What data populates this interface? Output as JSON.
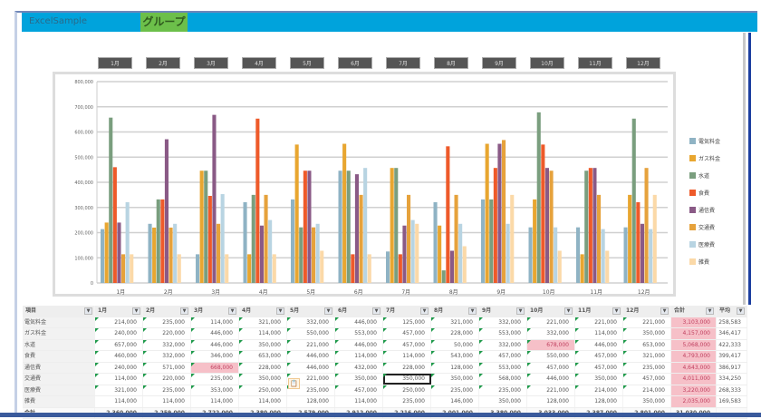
{
  "window": {
    "title": "ExcelSample",
    "active_tab": "グループ"
  },
  "month_buttons": [
    "1月",
    "2月",
    "3月",
    "4月",
    "5月",
    "6月",
    "7月",
    "8月",
    "9月",
    "10月",
    "11月",
    "12月"
  ],
  "table": {
    "corner_header": "項目",
    "total_header": "合計",
    "extra_header": "平均",
    "total_row_label": "合計",
    "filter_glyph": "▼",
    "paste_icon": "📋"
  },
  "chart_data": {
    "type": "bar",
    "categories": [
      "1月",
      "2月",
      "3月",
      "4月",
      "5月",
      "6月",
      "7月",
      "8月",
      "9月",
      "10月",
      "11月",
      "12月"
    ],
    "ylim": [
      0,
      800000
    ],
    "yticks": [
      "0",
      "100,000",
      "200,000",
      "300,000",
      "400,000",
      "500,000",
      "600,000",
      "700,000",
      "800,000"
    ],
    "legend_position": "right",
    "series": [
      {
        "name": "電気料金",
        "color": "#8fb3c4",
        "values": [
          214000,
          235000,
          114000,
          321000,
          332000,
          446000,
          125000,
          321000,
          332000,
          221000,
          221000,
          221000
        ]
      },
      {
        "name": "ガス料金",
        "color": "#e8a630",
        "values": [
          240000,
          220000,
          446000,
          114000,
          550000,
          553000,
          457000,
          228000,
          553000,
          332000,
          114000,
          350000
        ]
      },
      {
        "name": "水道",
        "color": "#7a9e7e",
        "values": [
          657000,
          332000,
          446000,
          350000,
          221000,
          446000,
          457000,
          50000,
          332000,
          678000,
          446000,
          653000
        ]
      },
      {
        "name": "食費",
        "color": "#ee5a2a",
        "values": [
          460000,
          332000,
          346000,
          653000,
          446000,
          114000,
          114000,
          543000,
          457000,
          550000,
          457000,
          321000
        ]
      },
      {
        "name": "通信費",
        "color": "#8a5a86",
        "values": [
          240000,
          571000,
          668000,
          228000,
          446000,
          432000,
          228000,
          128000,
          553000,
          457000,
          457000,
          235000
        ]
      },
      {
        "name": "交通費",
        "color": "#e6a23c",
        "values": [
          114000,
          220000,
          235000,
          350000,
          221000,
          350000,
          350000,
          350000,
          568000,
          446000,
          350000,
          457000
        ]
      },
      {
        "name": "医療費",
        "color": "#b8d4e2",
        "values": [
          321000,
          235000,
          353000,
          250000,
          235000,
          457000,
          250000,
          235000,
          235000,
          221000,
          214000,
          214000
        ]
      },
      {
        "name": "雑費",
        "color": "#fbd9a8",
        "values": [
          114000,
          114000,
          114000,
          114000,
          128000,
          114000,
          235000,
          146000,
          350000,
          128000,
          128000,
          350000
        ]
      }
    ]
  }
}
